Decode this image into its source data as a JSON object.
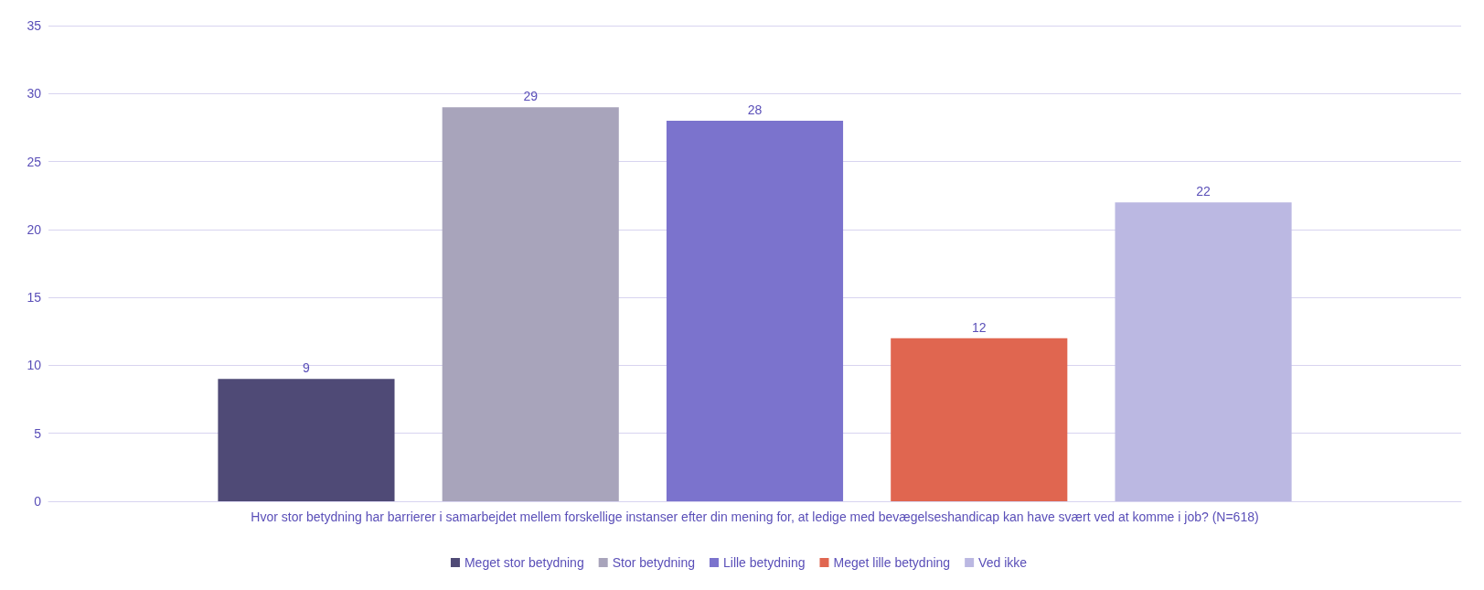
{
  "chart_data": {
    "type": "bar",
    "categories": [
      "Hvor stor betydning har barrierer i samarbejdet mellem forskellige instanser efter din mening for, at ledige med bevægelseshandicap kan have svært ved at komme i job? (N=618)"
    ],
    "series": [
      {
        "name": "Meget stor betydning",
        "color": "#4f4a76",
        "values": [
          9
        ]
      },
      {
        "name": "Stor betydning",
        "color": "#a8a4bb",
        "values": [
          29
        ]
      },
      {
        "name": "Lille betydning",
        "color": "#7b73cd",
        "values": [
          28
        ]
      },
      {
        "name": "Meget lille betydning",
        "color": "#e06650",
        "values": [
          12
        ]
      },
      {
        "name": "Ved ikke",
        "color": "#bbb8e2",
        "values": [
          22
        ]
      }
    ],
    "ylim": [
      0,
      35
    ],
    "yticks": [
      0,
      5,
      10,
      15,
      20,
      25,
      30,
      35
    ],
    "grid": "y",
    "legend": "bottom",
    "data_labels": true
  }
}
